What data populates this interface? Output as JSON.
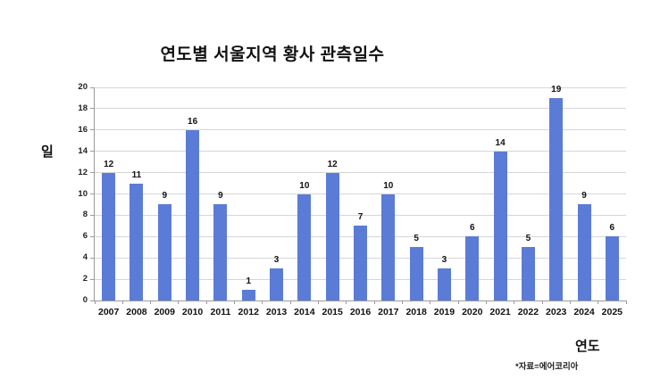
{
  "chart_data": {
    "type": "bar",
    "title": "연도별 서울지역 황사 관측일수",
    "categories": [
      "2007",
      "2008",
      "2009",
      "2010",
      "2011",
      "2012",
      "2013",
      "2014",
      "2015",
      "2016",
      "2017",
      "2018",
      "2019",
      "2020",
      "2021",
      "2022",
      "2023",
      "2024",
      "2025"
    ],
    "values": [
      12,
      11,
      9,
      16,
      9,
      1,
      3,
      10,
      12,
      7,
      10,
      5,
      3,
      6,
      14,
      5,
      19,
      9,
      6
    ],
    "xlabel": "연도",
    "ylabel": "일",
    "ylim": [
      0,
      20
    ],
    "ytick_step": 2,
    "grid": true,
    "legend": "none",
    "value_labels": true,
    "source_note": "*자료=에어코리아",
    "bar_color": "#5B7CD6",
    "gridline_color": "#D6D6D6",
    "axis_color": "#9B9B9B",
    "text_color": "#111111"
  }
}
